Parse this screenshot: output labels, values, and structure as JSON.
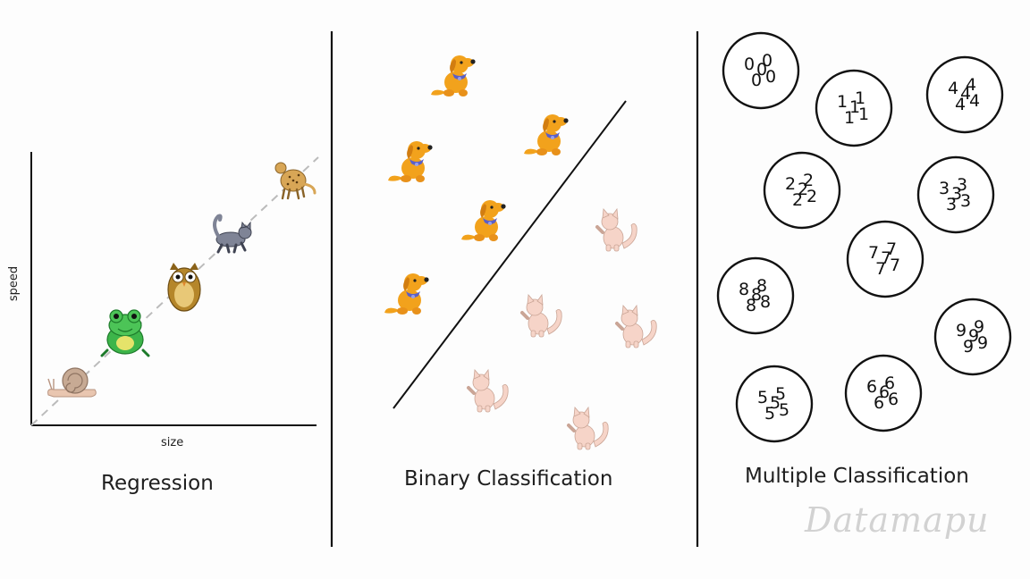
{
  "panels": {
    "regression": {
      "caption": "Regression",
      "xlabel": "size",
      "ylabel": "speed",
      "animals": [
        "snail-icon",
        "frog-icon",
        "owl-icon",
        "cat-icon",
        "cheetah-icon"
      ]
    },
    "binary": {
      "caption": "Binary Classification",
      "class_a": "dog-icon",
      "class_b": "cat-icon"
    },
    "multiple": {
      "caption": "Multiple Classification",
      "clusters": [
        {
          "digit": "0",
          "glyphs": [
            "0",
            "0",
            "0",
            "0",
            "0"
          ]
        },
        {
          "digit": "1",
          "glyphs": [
            "1",
            "1",
            "1",
            "1",
            "1"
          ]
        },
        {
          "digit": "4",
          "glyphs": [
            "4",
            "4",
            "4",
            "4",
            "4"
          ]
        },
        {
          "digit": "2",
          "glyphs": [
            "2",
            "2",
            "2",
            "2",
            "2"
          ]
        },
        {
          "digit": "3",
          "glyphs": [
            "3",
            "3",
            "3",
            "3",
            "3"
          ]
        },
        {
          "digit": "7",
          "glyphs": [
            "7",
            "7",
            "7",
            "7",
            "7"
          ]
        },
        {
          "digit": "8",
          "glyphs": [
            "8",
            "8",
            "8",
            "8",
            "8"
          ]
        },
        {
          "digit": "9",
          "glyphs": [
            "9",
            "9",
            "9",
            "9",
            "9"
          ]
        },
        {
          "digit": "5",
          "glyphs": [
            "5",
            "5",
            "5",
            "5",
            "5"
          ]
        },
        {
          "digit": "6",
          "glyphs": [
            "6",
            "6",
            "6",
            "6",
            "6"
          ]
        }
      ]
    }
  },
  "watermark": "Datamapu",
  "colors": {
    "dog": "#f2a21c",
    "dog_collar": "#5b5fc7",
    "cat": "#f6d4c8",
    "frog": "#3db54a",
    "owl": "#c9962f",
    "wolfcat": "#7f8496",
    "cheetah": "#d8a656",
    "snail": "#e9c6b0",
    "line": "#111111"
  }
}
